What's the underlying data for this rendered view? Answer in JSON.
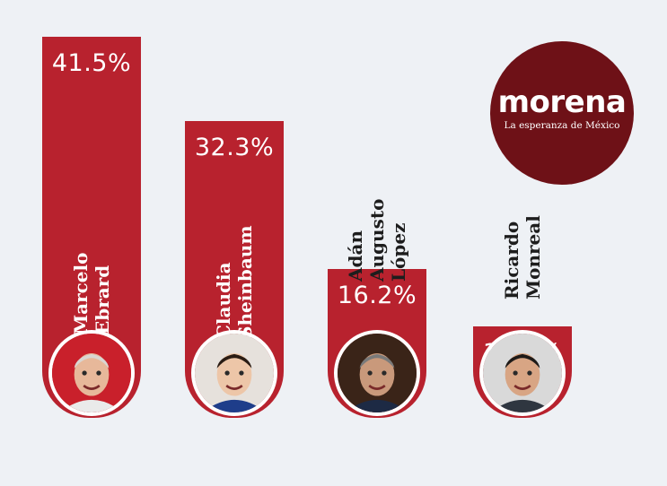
{
  "logo": {
    "word": "morena",
    "tagline": "La esperanza de México"
  },
  "colors": {
    "bar": "#b8222e",
    "logo": "#6e1117",
    "background": "#eef1f5"
  },
  "chart_data": {
    "type": "bar",
    "categories": [
      "Marcelo Ebrard",
      "Claudia Sheinbaum",
      "Adán Augusto López",
      "Ricardo Monreal"
    ],
    "values": [
      41.5,
      32.3,
      16.2,
      10.0
    ],
    "labels": [
      "41.5%",
      "32.3%",
      "16.2%",
      "10.0%"
    ],
    "name_lines": [
      [
        "Marcelo",
        "Ebrard"
      ],
      [
        "Claudia",
        "Sheinbaum"
      ],
      [
        "Adán",
        "Augusto",
        "López"
      ],
      [
        "Ricardo",
        "Monreal"
      ]
    ]
  }
}
